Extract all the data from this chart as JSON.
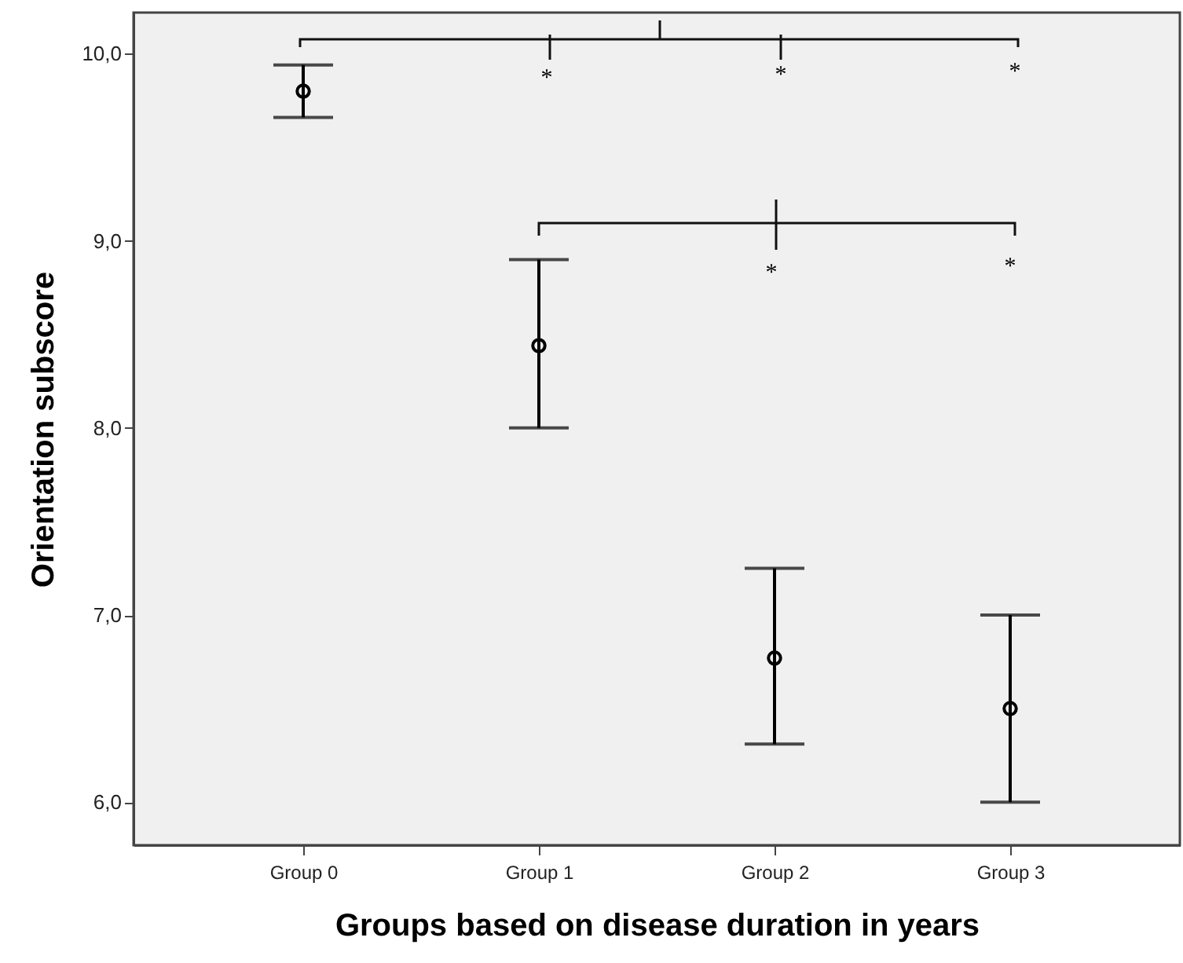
{
  "chart_data": {
    "type": "scatter",
    "xlabel": "Groups based on disease duration in years",
    "ylabel": "Orientation subscore",
    "categories": [
      "Group 0",
      "Group 1",
      "Group 2",
      "Group 3"
    ],
    "values": [
      9.8,
      8.44,
      6.77,
      6.5
    ],
    "errors": [
      [
        9.66,
        9.94
      ],
      [
        8.0,
        8.9
      ],
      [
        6.31,
        7.25
      ],
      [
        6.0,
        7.0
      ]
    ],
    "color": "#000000",
    "marker": "circle",
    "ylim": [
      5.77,
      10.22
    ],
    "yticks": [
      {
        "value": 6,
        "label": "6,0"
      },
      {
        "value": 7,
        "label": "7,0"
      },
      {
        "value": 8,
        "label": "8,0"
      },
      {
        "value": 9,
        "label": "9,0"
      },
      {
        "value": 10,
        "label": "10,0"
      }
    ],
    "annotations": [
      "*",
      "*",
      "*",
      "*",
      "*"
    ]
  }
}
